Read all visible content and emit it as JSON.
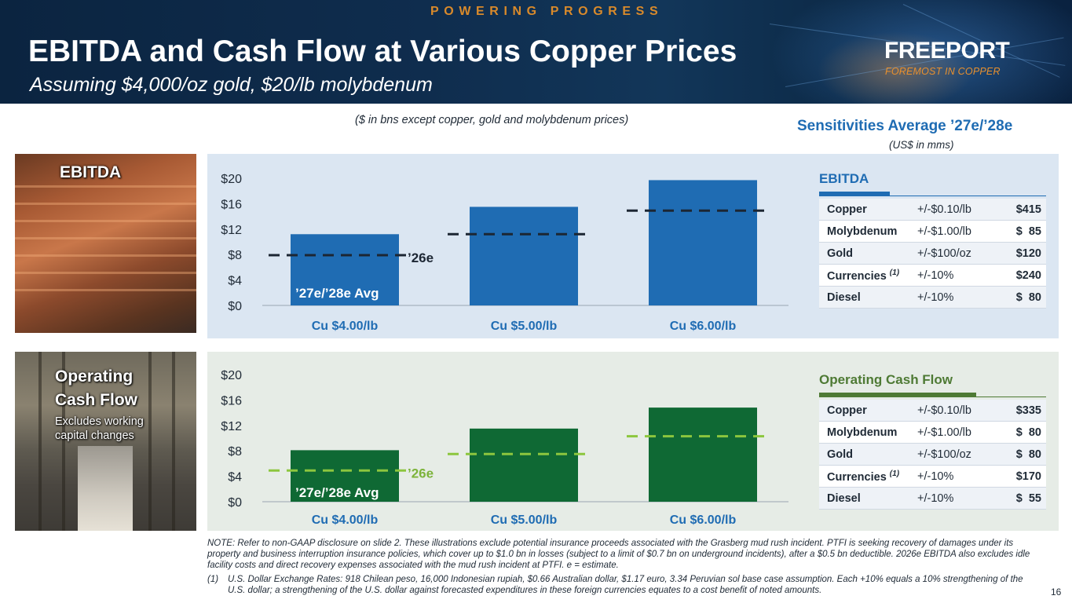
{
  "header": {
    "tagline": "POWERING PROGRESS",
    "title": "EBITDA and Cash Flow at Various Copper Prices",
    "subtitle": "Assuming $4,000/oz gold, $20/lb molybdenum",
    "logo": "FREEPORT",
    "logo_tagline": "FOREMOST IN COPPER"
  },
  "units_note": "($ in bns except copper, gold and molybdenum prices)",
  "sensitivities": {
    "title": "Sensitivities Average ’27e/’28e",
    "subtitle": "(US$ in mms)",
    "ebitda": {
      "heading": "EBITDA",
      "color": "#1f6cb3",
      "rows": [
        {
          "name": "Copper",
          "sup": "",
          "range": "+/-$0.10/lb",
          "value": "$415"
        },
        {
          "name": "Molybdenum",
          "sup": "",
          "range": "+/-$1.00/lb",
          "value": "$  85"
        },
        {
          "name": "Gold",
          "sup": "",
          "range": "+/-$100/oz",
          "value": "$120"
        },
        {
          "name": "Currencies",
          "sup": "(1)",
          "range": "+/-10%",
          "value": "$240"
        },
        {
          "name": "Diesel",
          "sup": "",
          "range": "+/-10%",
          "value": "$  80"
        }
      ]
    },
    "ocf": {
      "heading": "Operating Cash Flow",
      "color": "#4e7a34",
      "rows": [
        {
          "name": "Copper",
          "sup": "",
          "range": "+/-$0.10/lb",
          "value": "$335"
        },
        {
          "name": "Molybdenum",
          "sup": "",
          "range": "+/-$1.00/lb",
          "value": "$  80"
        },
        {
          "name": "Gold",
          "sup": "",
          "range": "+/-$100/oz",
          "value": "$  80"
        },
        {
          "name": "Currencies",
          "sup": "(1)",
          "range": "+/-10%",
          "value": "$170"
        },
        {
          "name": "Diesel",
          "sup": "",
          "range": "+/-10%",
          "value": "$  55"
        }
      ]
    }
  },
  "photos": {
    "ebitda_label": "EBITDA",
    "ocf_label_line1": "Operating",
    "ocf_label_line2": "Cash Flow",
    "ocf_sub_line1": "Excludes working",
    "ocf_sub_line2": "capital changes"
  },
  "chart_data": [
    {
      "type": "bar",
      "title": "EBITDA",
      "categories": [
        "Cu $4.00/lb",
        "Cu $5.00/lb",
        "Cu $6.00/lb"
      ],
      "series": [
        {
          "name": "’27e/’28e Avg",
          "values": [
            11.2,
            15.5,
            19.7
          ]
        },
        {
          "name": "’26e",
          "values": [
            7.9,
            11.2,
            14.9
          ]
        }
      ],
      "bar_label": "’27e/’28e Avg",
      "line_label": "’26e",
      "yticks": [
        "$0",
        "$4",
        "$8",
        "$12",
        "$16",
        "$20"
      ],
      "ylim": [
        0,
        20
      ],
      "bar_color": "#1f6cb3",
      "line_color": "#1c2633",
      "category_color": "#1f6cb3",
      "line_label_color": "#1c2633"
    },
    {
      "type": "bar",
      "title": "Operating Cash Flow",
      "categories": [
        "Cu $4.00/lb",
        "Cu $5.00/lb",
        "Cu $6.00/lb"
      ],
      "series": [
        {
          "name": "’27e/’28e Avg",
          "values": [
            8.1,
            11.5,
            14.8
          ]
        },
        {
          "name": "’26e",
          "values": [
            4.9,
            7.5,
            10.3
          ]
        }
      ],
      "bar_label": "’27e/’28e Avg",
      "line_label": "’26e",
      "yticks": [
        "$0",
        "$4",
        "$8",
        "$12",
        "$16",
        "$20"
      ],
      "ylim": [
        0,
        20
      ],
      "bar_color": "#0f6934",
      "line_color": "#8cc63e",
      "category_color": "#1f6cb3",
      "line_label_color": "#7cb33a"
    }
  ],
  "notes": {
    "main": "NOTE: Refer to non-GAAP disclosure on slide 2. These illustrations exclude potential insurance proceeds associated with the Grasberg mud rush incident. PTFI is seeking recovery of damages under its property and business interruption insurance policies, which cover up to $1.0 bn in losses (subject to a limit of $0.7 bn on underground incidents), after a $0.5 bn deductible. 2026e EBITDA also excludes idle facility costs and direct recovery expenses associated with the mud rush incident at PTFI.   e = estimate.",
    "fn_num": "(1)",
    "fn_text": "U.S. Dollar Exchange Rates: 918 Chilean peso, 16,000 Indonesian rupiah, $0.66 Australian dollar, $1.17 euro, 3.34 Peruvian sol base case assumption. Each +10% equals a 10% strengthening of the U.S. dollar; a strengthening of the U.S. dollar against forecasted expenditures in these foreign currencies equates to a cost benefit of noted amounts.",
    "page": "16"
  }
}
